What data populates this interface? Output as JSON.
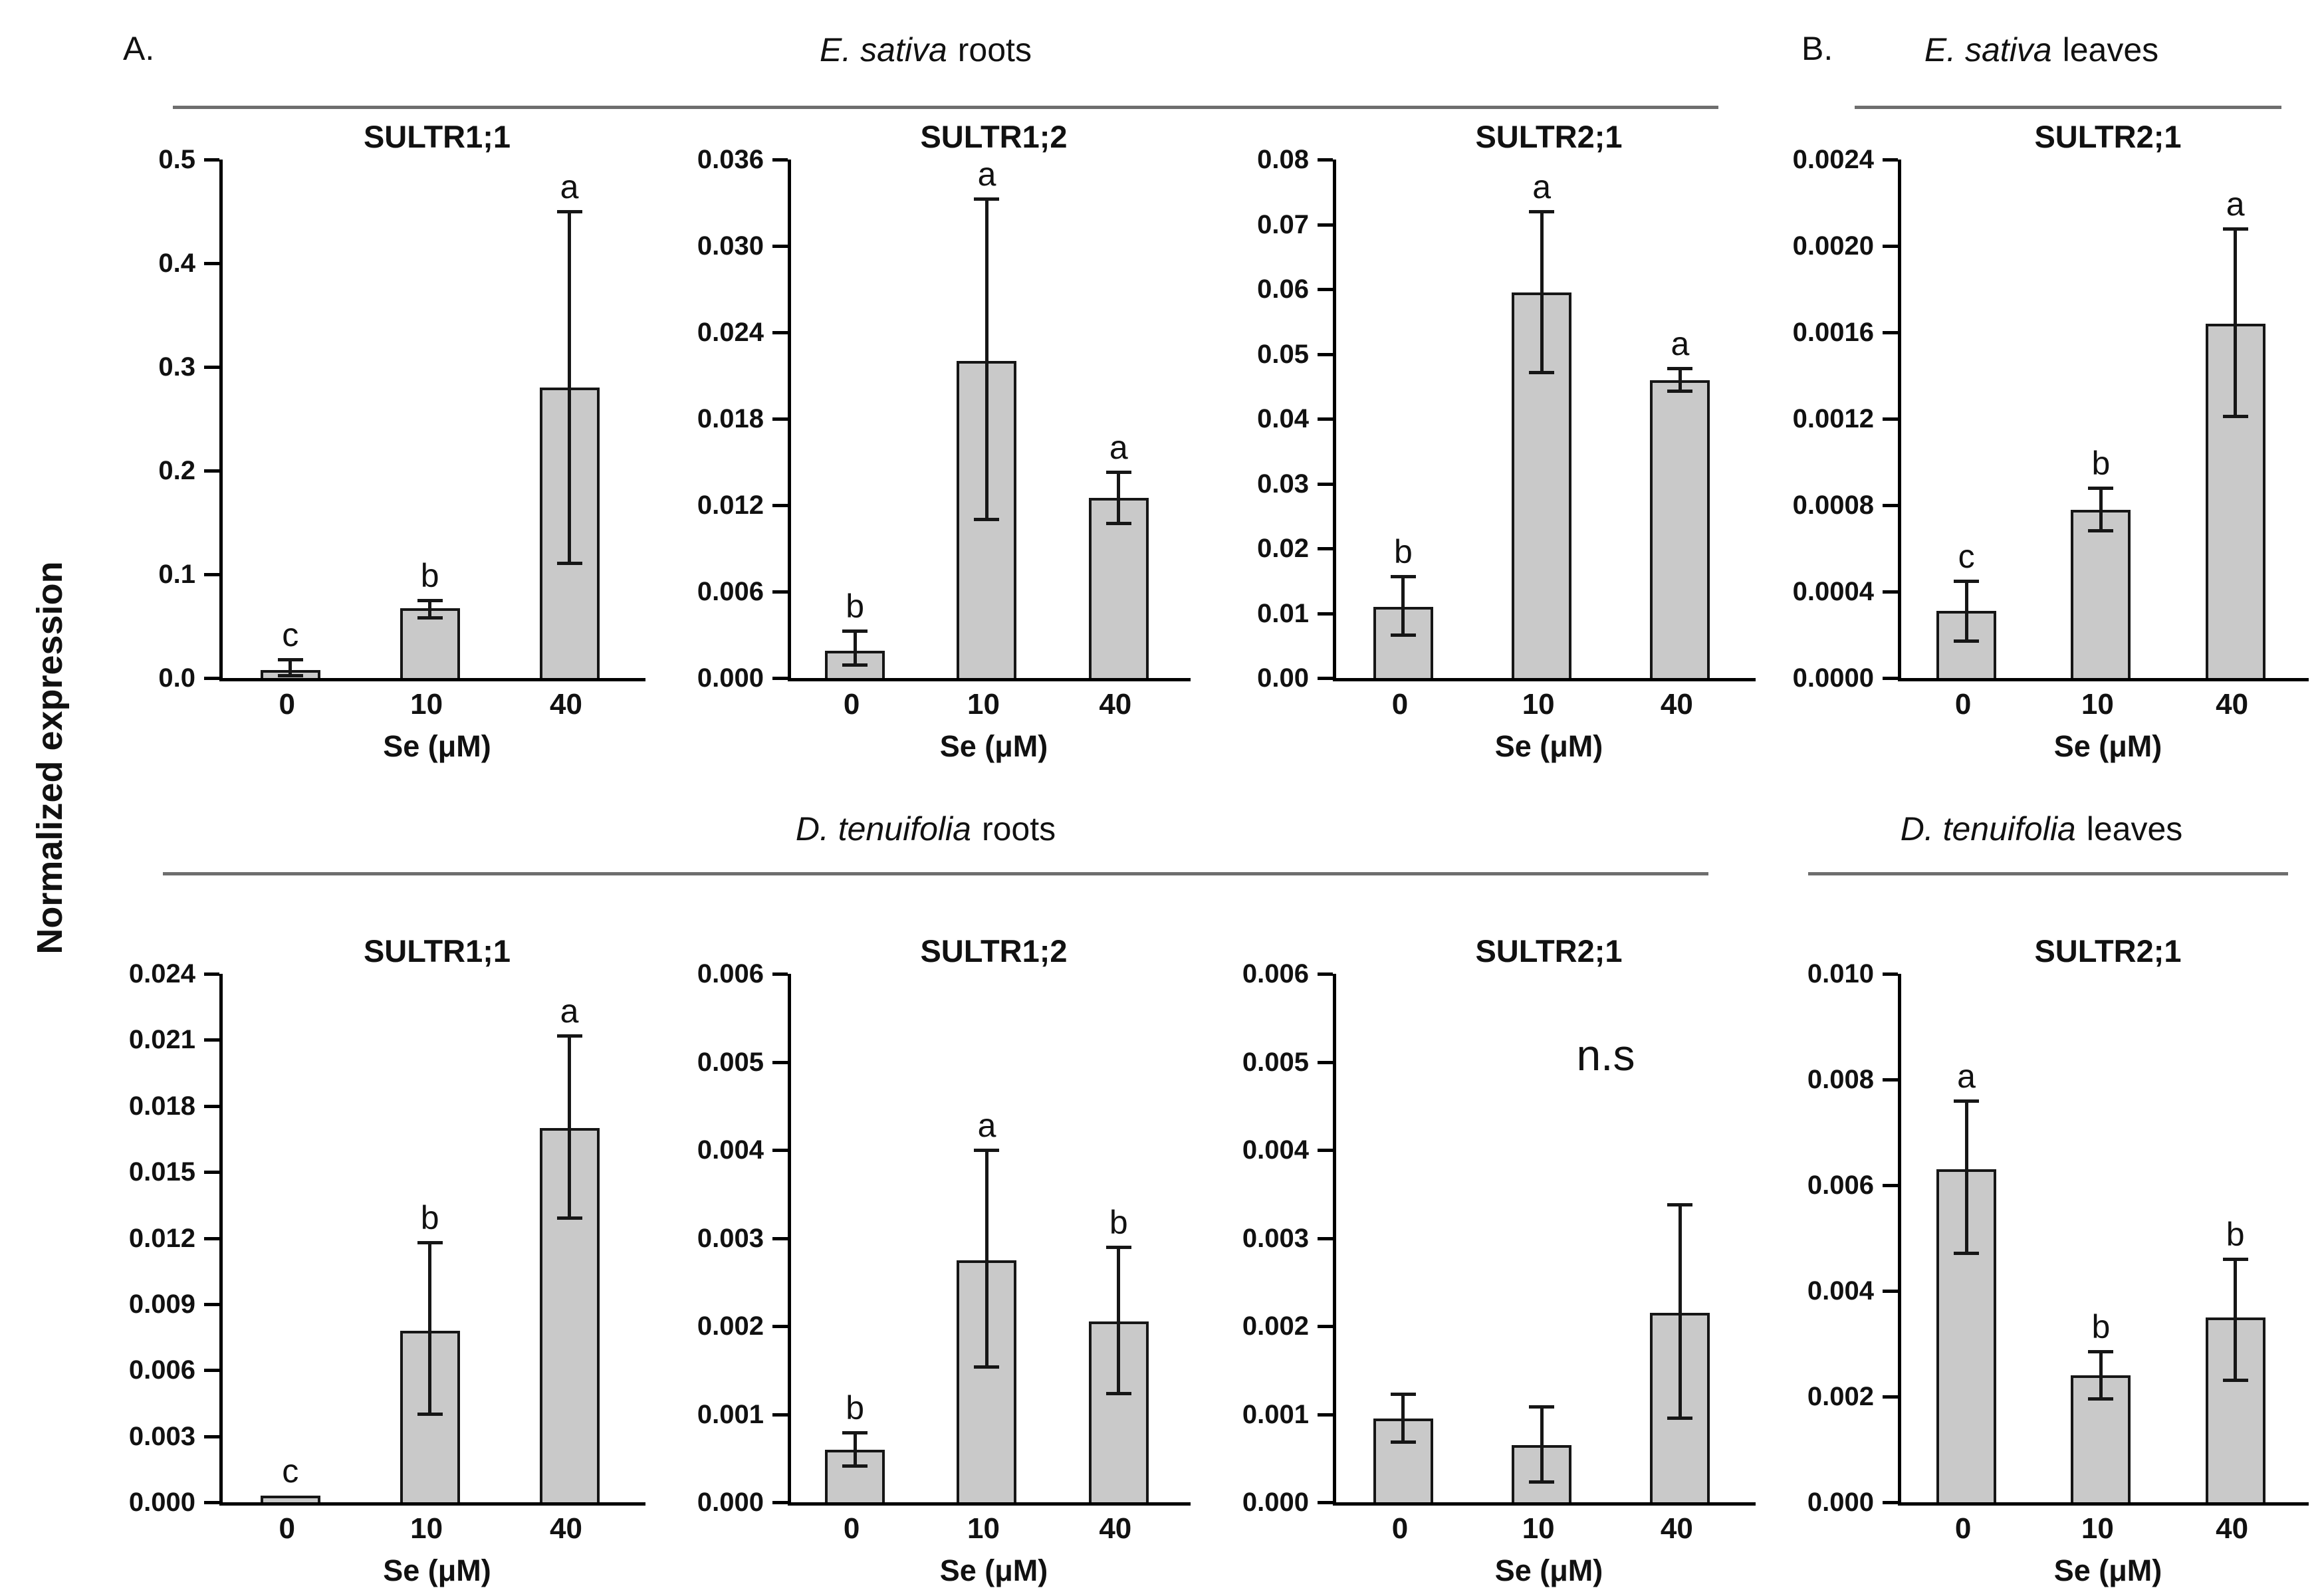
{
  "figure": {
    "y_axis_label": "Normalized expression",
    "x_axis_label": "Se (μM)",
    "categories": [
      "0",
      "10",
      "40"
    ],
    "colors": {
      "bar_fill": "#c9c9c9",
      "bar_stroke": "#161616",
      "axis": "#000000",
      "header_line": "#6e6e6e",
      "text": "#111111"
    }
  },
  "headers": [
    {
      "panel_label": "A.",
      "species": "E. sativa",
      "tissue": "roots"
    },
    {
      "panel_label": "B.",
      "species": "E. sativa",
      "tissue": "leaves"
    },
    {
      "panel_label": "",
      "species": "D. tenuifolia",
      "tissue": "roots"
    },
    {
      "panel_label": "",
      "species": "D. tenuifolia",
      "tissue": "leaves"
    }
  ],
  "chart_data": [
    {
      "type": "bar",
      "panel": "A",
      "group": "E. sativa roots",
      "title": "SULTR1;1",
      "categories": [
        "0",
        "10",
        "40"
      ],
      "values": [
        0.008,
        0.067,
        0.28
      ],
      "err_low": [
        0.006,
        0.009,
        0.17
      ],
      "err_high": [
        0.01,
        0.008,
        0.17
      ],
      "letters": [
        "c",
        "b",
        "a"
      ],
      "ylim": [
        0,
        0.5
      ],
      "ytick_step": 0.1,
      "ytick_decimals": 1,
      "xlabel": "Se (μM)",
      "annotation": ""
    },
    {
      "type": "bar",
      "panel": "A",
      "group": "E. sativa roots",
      "title": "SULTR1;2",
      "categories": [
        "0",
        "10",
        "40"
      ],
      "values": [
        0.0019,
        0.022,
        0.0125
      ],
      "err_low": [
        0.001,
        0.011,
        0.0018
      ],
      "err_high": [
        0.0014,
        0.0113,
        0.0018
      ],
      "letters": [
        "b",
        "a",
        "a"
      ],
      "ylim": [
        0,
        0.036
      ],
      "ytick_step": 0.006,
      "ytick_decimals": 3,
      "xlabel": "Se (μM)",
      "annotation": ""
    },
    {
      "type": "bar",
      "panel": "A",
      "group": "E. sativa roots",
      "title": "SULTR2;1",
      "categories": [
        "0",
        "10",
        "40"
      ],
      "values": [
        0.011,
        0.0595,
        0.046
      ],
      "err_low": [
        0.0044,
        0.0124,
        0.0018
      ],
      "err_high": [
        0.0047,
        0.0125,
        0.0018
      ],
      "letters": [
        "b",
        "a",
        "a"
      ],
      "ylim": [
        0,
        0.08
      ],
      "ytick_step": 0.01,
      "ytick_decimals": 2,
      "xlabel": "Se (μM)",
      "annotation": ""
    },
    {
      "type": "bar",
      "panel": "B",
      "group": "E. sativa leaves",
      "title": "SULTR2;1",
      "categories": [
        "0",
        "10",
        "40"
      ],
      "values": [
        0.00031,
        0.00078,
        0.00164
      ],
      "err_low": [
        0.00014,
        0.0001,
        0.00043
      ],
      "err_high": [
        0.00014,
        0.0001,
        0.00044
      ],
      "letters": [
        "c",
        "b",
        "a"
      ],
      "ylim": [
        0,
        0.0024
      ],
      "ytick_step": 0.0004,
      "ytick_decimals": 4,
      "xlabel": "Se (μM)",
      "annotation": ""
    },
    {
      "type": "bar",
      "panel": "A",
      "group": "D. tenuifolia roots",
      "title": "SULTR1;1",
      "categories": [
        "0",
        "10",
        "40"
      ],
      "values": [
        0.0003,
        0.0078,
        0.017
      ],
      "err_low": [
        0,
        0.0038,
        0.0041
      ],
      "err_high": [
        0,
        0.004,
        0.0042
      ],
      "letters": [
        "c",
        "b",
        "a"
      ],
      "ylim": [
        0,
        0.024
      ],
      "ytick_step": 0.003,
      "ytick_decimals": 3,
      "xlabel": "Se (μM)",
      "annotation": ""
    },
    {
      "type": "bar",
      "panel": "A",
      "group": "D. tenuifolia roots",
      "title": "SULTR1;2",
      "categories": [
        "0",
        "10",
        "40"
      ],
      "values": [
        0.0006,
        0.00275,
        0.00205
      ],
      "err_low": [
        0.00019,
        0.00122,
        0.00082
      ],
      "err_high": [
        0.00019,
        0.00125,
        0.00085
      ],
      "letters": [
        "b",
        "a",
        "b"
      ],
      "ylim": [
        0,
        0.006
      ],
      "ytick_step": 0.001,
      "ytick_decimals": 3,
      "xlabel": "Se (μM)",
      "annotation": ""
    },
    {
      "type": "bar",
      "panel": "A",
      "group": "D. tenuifolia roots",
      "title": "SULTR2;1",
      "categories": [
        "0",
        "10",
        "40"
      ],
      "values": [
        0.00095,
        0.00065,
        0.00215
      ],
      "err_low": [
        0.00027,
        0.00042,
        0.0012
      ],
      "err_high": [
        0.00028,
        0.00044,
        0.00123
      ],
      "letters": [
        "",
        "",
        ""
      ],
      "ylim": [
        0,
        0.006
      ],
      "ytick_step": 0.001,
      "ytick_decimals": 3,
      "xlabel": "Se (μM)",
      "annotation": "n.s"
    },
    {
      "type": "bar",
      "panel": "B",
      "group": "D. tenuifolia leaves",
      "title": "SULTR2;1",
      "categories": [
        "0",
        "10",
        "40"
      ],
      "values": [
        0.0063,
        0.0024,
        0.0035
      ],
      "err_low": [
        0.0016,
        0.00045,
        0.0012
      ],
      "err_high": [
        0.0013,
        0.00045,
        0.0011
      ],
      "letters": [
        "a",
        "b",
        "b"
      ],
      "ylim": [
        0,
        0.01
      ],
      "ytick_step": 0.002,
      "ytick_decimals": 3,
      "xlabel": "Se (μM)",
      "annotation": ""
    }
  ]
}
